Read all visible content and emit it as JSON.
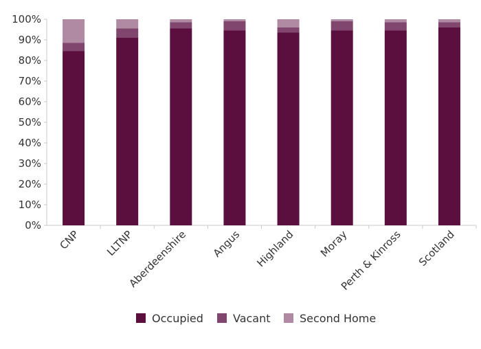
{
  "chart_data": {
    "type": "bar",
    "stacked": true,
    "categories": [
      "CNP",
      "LLTNP",
      "Aberdeenshire",
      "Angus",
      "Highland",
      "Moray",
      "Perth & Kinross",
      "Scotland"
    ],
    "series": [
      {
        "name": "Occupied",
        "color": "#5a0f3f",
        "values": [
          84.5,
          91,
          95.5,
          94.5,
          93.5,
          94.5,
          94.5,
          96
        ]
      },
      {
        "name": "Vacant",
        "color": "#80466d",
        "values": [
          4,
          4.5,
          3,
          4.5,
          2.5,
          4.5,
          4,
          2.5
        ]
      },
      {
        "name": "Second Home",
        "color": "#b08aa3",
        "values": [
          11.5,
          4.5,
          1.5,
          1,
          4,
          1,
          1.5,
          1.5
        ]
      }
    ],
    "yticks": [
      "0%",
      "10%",
      "20%",
      "30%",
      "40%",
      "50%",
      "60%",
      "70%",
      "80%",
      "90%",
      "100%"
    ],
    "ylim": [
      0,
      100
    ],
    "xlabel": "",
    "ylabel": "",
    "grid": false,
    "legend_position": "bottom"
  }
}
